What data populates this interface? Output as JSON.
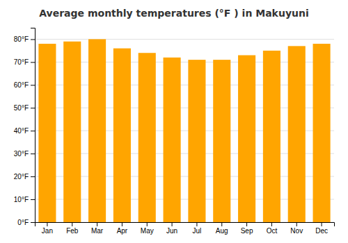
{
  "chart_data": {
    "type": "bar",
    "title": "Average monthly temperatures (°F ) in Makuyuni",
    "categories": [
      "Jan",
      "Feb",
      "Mar",
      "Apr",
      "May",
      "Jun",
      "Jul",
      "Aug",
      "Sep",
      "Oct",
      "Nov",
      "Dec"
    ],
    "values": [
      78,
      79,
      80,
      76,
      74,
      72,
      71,
      71,
      73,
      75,
      77,
      78
    ],
    "color": "#FFA500",
    "ylim": [
      0,
      85
    ],
    "yticks": [
      {
        "value": 0,
        "label": "0°F"
      },
      {
        "value": 10,
        "label": "10°F"
      },
      {
        "value": 20,
        "label": "20°F"
      },
      {
        "value": 30,
        "label": "30°F"
      },
      {
        "value": 40,
        "label": "40°F"
      },
      {
        "value": 50,
        "label": "50°F"
      },
      {
        "value": 60,
        "label": "60°F"
      },
      {
        "value": 70,
        "label": "70°F"
      },
      {
        "value": 80,
        "label": "80°F"
      }
    ],
    "grid": true
  }
}
